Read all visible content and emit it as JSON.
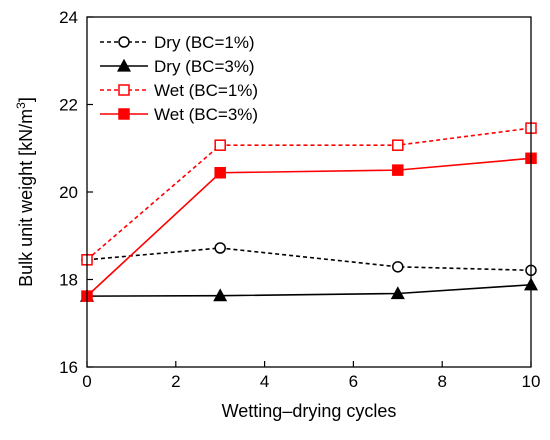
{
  "chart_data": {
    "type": "line",
    "title": "",
    "xlabel": "Wetting–drying cycles",
    "ylabel_main": "Bulk unit weight [kN/m",
    "ylabel_sup": "3",
    "ylabel_end": "]",
    "xlim": [
      0,
      10
    ],
    "ylim": [
      16,
      24
    ],
    "xticks": [
      0,
      2,
      4,
      6,
      8,
      10
    ],
    "yticks": [
      16,
      18,
      20,
      22,
      24
    ],
    "x": [
      0,
      3,
      7,
      10
    ],
    "grid": false,
    "legend_position": "top-left",
    "series": [
      {
        "name": "Dry (BC=1%)",
        "values": [
          18.45,
          18.72,
          18.29,
          18.21
        ],
        "color": "#000000",
        "line_style": "dashed",
        "marker": "circle",
        "marker_fill": "open"
      },
      {
        "name": "Dry (BC=3%)",
        "values": [
          17.62,
          17.63,
          17.68,
          17.88
        ],
        "color": "#000000",
        "line_style": "solid",
        "marker": "triangle",
        "marker_fill": "filled"
      },
      {
        "name": "Wet (BC=1%)",
        "values": [
          18.45,
          21.07,
          21.07,
          21.46
        ],
        "color": "#ff0000",
        "line_style": "dashed",
        "marker": "square",
        "marker_fill": "open"
      },
      {
        "name": "Wet (BC=3%)",
        "values": [
          17.62,
          20.44,
          20.5,
          20.77
        ],
        "color": "#ff0000",
        "line_style": "solid",
        "marker": "square",
        "marker_fill": "filled"
      }
    ]
  }
}
